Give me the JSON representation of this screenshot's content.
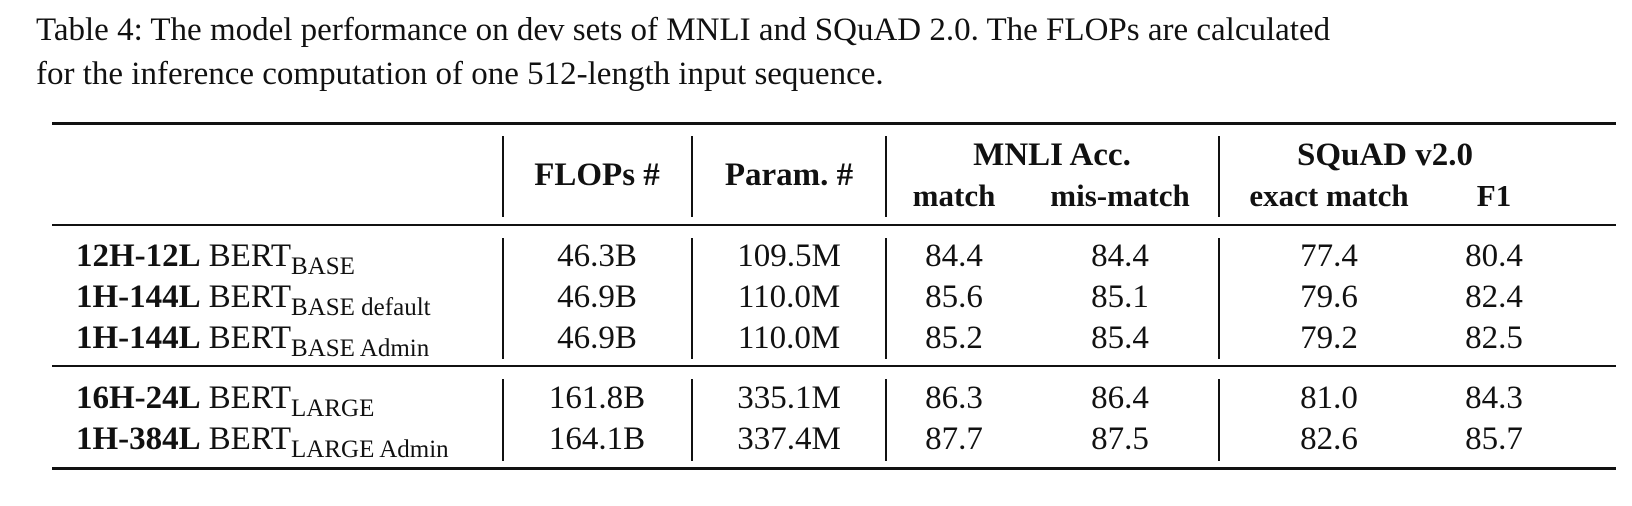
{
  "caption": {
    "line1": "Table 4: The model performance on dev sets of MNLI and SQuAD 2.0. The FLOPs are calculated",
    "line2": "for the inference computation of one 512-length input sequence."
  },
  "table": {
    "headers": {
      "flops": "FLOPs #",
      "params": "Param. #",
      "mnli": "MNLI Acc.",
      "mnli_match": "match",
      "mnli_mismatch": "mis-match",
      "squad": "SQuAD v2.0",
      "squad_exact": "exact match",
      "squad_f1": "F1"
    },
    "rows": [
      {
        "model": "12H-12L",
        "bert": "BERT",
        "sub": "BASE",
        "flops": "46.3B",
        "params": "109.5M",
        "match": "84.4",
        "mismatch": "84.4",
        "exact": "77.4",
        "f1": "80.4"
      },
      {
        "model": "1H-144L",
        "bert": "BERT",
        "sub": "BASE default",
        "flops": "46.9B",
        "params": "110.0M",
        "match": "85.6",
        "mismatch": "85.1",
        "exact": "79.6",
        "f1": "82.4"
      },
      {
        "model": "1H-144L",
        "bert": "BERT",
        "sub": "BASE Admin",
        "flops": "46.9B",
        "params": "110.0M",
        "match": "85.2",
        "mismatch": "85.4",
        "exact": "79.2",
        "f1": "82.5"
      },
      {
        "model": "16H-24L",
        "bert": "BERT",
        "sub": "LARGE",
        "flops": "161.8B",
        "params": "335.1M",
        "match": "86.3",
        "mismatch": "86.4",
        "exact": "81.0",
        "f1": "84.3"
      },
      {
        "model": "1H-384L",
        "bert": "BERT",
        "sub": "LARGE Admin",
        "flops": "164.1B",
        "params": "337.4M",
        "match": "87.7",
        "mismatch": "87.5",
        "exact": "82.6",
        "f1": "85.7"
      }
    ]
  }
}
